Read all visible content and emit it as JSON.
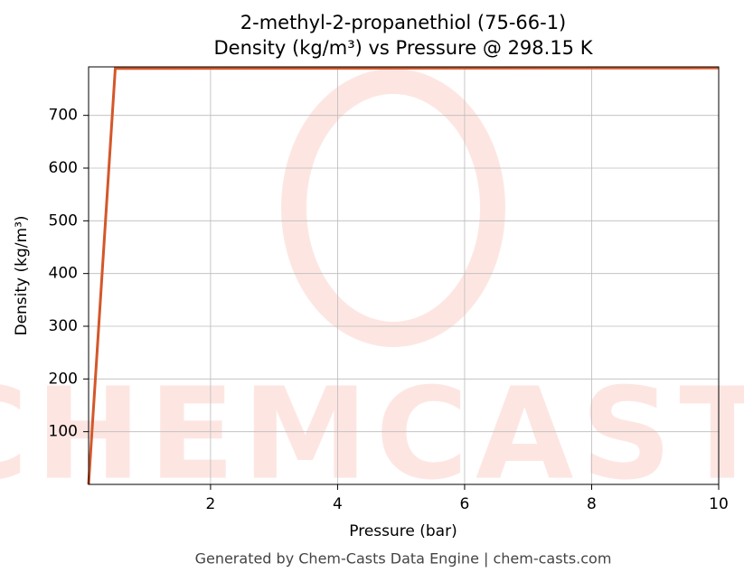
{
  "chart_data": {
    "type": "line",
    "title": "2-methyl-2-propanethiol (75-66-1)",
    "subtitle": "Density (kg/m³) vs Pressure @ 298.15 K",
    "x_label": "Pressure (bar)",
    "y_label": "Density (kg/m³)",
    "x": [
      0.08,
      0.5,
      10
    ],
    "series": [
      {
        "name": "Density",
        "color": "#d4572a",
        "values": [
          0,
          789,
          790
        ]
      }
    ],
    "xlim": [
      0.08,
      10
    ],
    "ylim": [
      0,
      792
    ],
    "xticks": [
      2,
      4,
      6,
      8,
      10
    ],
    "yticks": [
      100,
      200,
      300,
      400,
      500,
      600,
      700
    ],
    "grid": true,
    "watermark": "CHEMCASTS",
    "footer": "Generated by Chem-Casts Data Engine | chem-casts.com"
  }
}
